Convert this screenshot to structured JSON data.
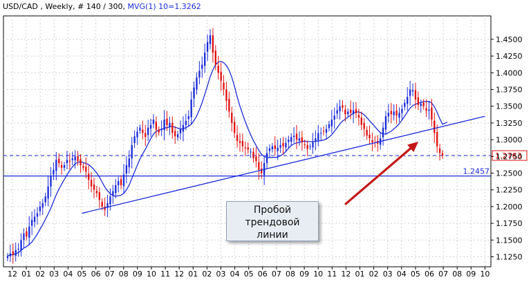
{
  "header": {
    "symbol_info": "USD/CAD , Weekly, # 140 / 300,",
    "indicator": "MVG(1) 10=1.3262"
  },
  "callout": {
    "lines": [
      "Пробой",
      "трендовой",
      "линии"
    ]
  },
  "colors": {
    "bull": "#1a2bd8",
    "bear": "#e01010",
    "moving_average": "#1a2bd8",
    "trend_line": "#1a2bd8",
    "support_line": "#1a2bd8",
    "current_price_line": "#1a2bd8",
    "arrow": "#c41818",
    "current_price_label": "#e01010"
  },
  "chart_data": {
    "type": "candlestick",
    "title": "USD/CAD , Weekly",
    "xlabel": "",
    "ylabel": "",
    "ylim": [
      1.11,
      1.485
    ],
    "y_ticks": [
      "1.4500",
      "1.4250",
      "1.4000",
      "1.3750",
      "1.3500",
      "1.3250",
      "1.3000",
      "1.2750",
      "1.2500",
      "1.2250",
      "1.2000",
      "1.1750",
      "1.1500",
      "1.1250"
    ],
    "x_ticks": [
      "12",
      "01",
      "02",
      "03",
      "04",
      "05",
      "06",
      "07",
      "08",
      "09",
      "10",
      "11",
      "12",
      "01",
      "02",
      "03",
      "04",
      "05",
      "06",
      "07",
      "08",
      "09",
      "10",
      "11",
      "12",
      "01",
      "02",
      "03",
      "04",
      "05",
      "06",
      "07",
      "08",
      "09",
      "10"
    ],
    "grid": true,
    "current_price": 1.2763,
    "current_price_label": "1.2763",
    "support_level": 1.2457,
    "support_label": "1.2457",
    "moving_average": {
      "name": "MVG(1) 10",
      "last_value": 1.3262
    },
    "trend_line": {
      "from": {
        "x": "05",
        "y": 1.19
      },
      "to": {
        "x": "10",
        "y": 1.335
      }
    },
    "closes": [
      1.126,
      1.13,
      1.128,
      1.135,
      1.137,
      1.15,
      1.16,
      1.155,
      1.17,
      1.18,
      1.185,
      1.19,
      1.2,
      1.205,
      1.215,
      1.23,
      1.245,
      1.255,
      1.27,
      1.265,
      1.258,
      1.262,
      1.27,
      1.268,
      1.272,
      1.275,
      1.268,
      1.262,
      1.258,
      1.252,
      1.24,
      1.23,
      1.225,
      1.22,
      1.21,
      1.2,
      1.195,
      1.205,
      1.215,
      1.223,
      1.232,
      1.238,
      1.232,
      1.248,
      1.262,
      1.272,
      1.292,
      1.305,
      1.312,
      1.318,
      1.31,
      1.304,
      1.318,
      1.322,
      1.33,
      1.315,
      1.311,
      1.316,
      1.33,
      1.322,
      1.325,
      1.31,
      1.305,
      1.308,
      1.315,
      1.322,
      1.328,
      1.335,
      1.36,
      1.378,
      1.393,
      1.403,
      1.412,
      1.43,
      1.446,
      1.456,
      1.43,
      1.412,
      1.4,
      1.388,
      1.375,
      1.358,
      1.342,
      1.325,
      1.31,
      1.298,
      1.295,
      1.29,
      1.287,
      1.285,
      1.282,
      1.272,
      1.268,
      1.255,
      1.25,
      1.265,
      1.28,
      1.287,
      1.29,
      1.286,
      1.288,
      1.292,
      1.29,
      1.295,
      1.3,
      1.304,
      1.306,
      1.3,
      1.302,
      1.296,
      1.292,
      1.286,
      1.29,
      1.296,
      1.302,
      1.31,
      1.31,
      1.312,
      1.316,
      1.323,
      1.33,
      1.336,
      1.344,
      1.35,
      1.348,
      1.338,
      1.342,
      1.34,
      1.344,
      1.34,
      1.333,
      1.322,
      1.316,
      1.306,
      1.302,
      1.296,
      1.295,
      1.294,
      1.302,
      1.318,
      1.335,
      1.34,
      1.338,
      1.342,
      1.336,
      1.34,
      1.346,
      1.355,
      1.364,
      1.375,
      1.374,
      1.36,
      1.352,
      1.354,
      1.35,
      1.343,
      1.345,
      1.33,
      1.31,
      1.29,
      1.28,
      1.2763
    ]
  }
}
